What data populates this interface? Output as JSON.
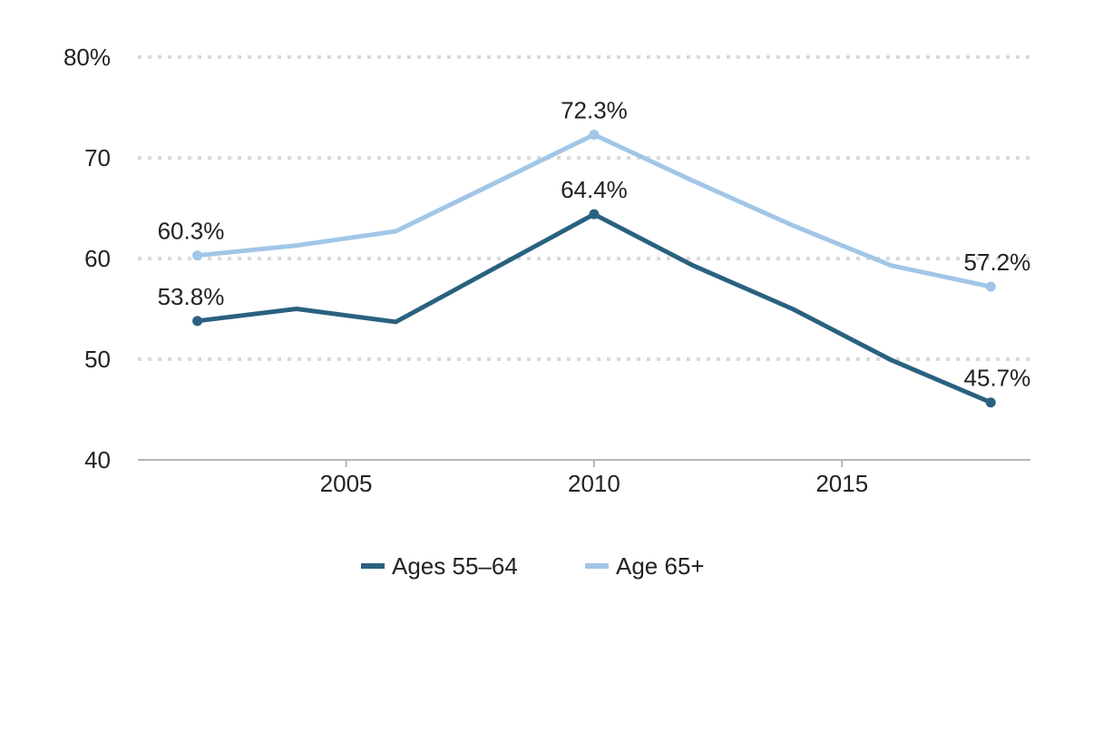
{
  "chart_data": {
    "type": "line",
    "x": [
      2002,
      2004,
      2006,
      2010,
      2012,
      2014,
      2016,
      2018
    ],
    "series": [
      {
        "name": "Ages 55–64",
        "color": "#2a6180",
        "values": [
          53.8,
          55.0,
          53.7,
          64.4,
          59.3,
          55.0,
          49.9,
          45.7
        ],
        "labels": [
          {
            "index": 0,
            "text": "53.8%"
          },
          {
            "index": 3,
            "text": "64.4%"
          },
          {
            "index": 7,
            "text": "45.7%"
          }
        ],
        "markers": [
          0,
          3,
          7
        ]
      },
      {
        "name": "Age 65+",
        "color": "#a1c6e7",
        "values": [
          60.3,
          61.3,
          62.7,
          72.3,
          67.7,
          63.3,
          59.3,
          57.2
        ],
        "labels": [
          {
            "index": 0,
            "text": "60.3%"
          },
          {
            "index": 3,
            "text": "72.3%"
          },
          {
            "index": 7,
            "text": "57.2%"
          }
        ],
        "markers": [
          0,
          3,
          7
        ]
      }
    ],
    "xlim": [
      2000.8,
      2018.8
    ],
    "ylim": [
      40,
      80
    ],
    "yticks": [
      {
        "value": 40,
        "label": "40"
      },
      {
        "value": 50,
        "label": "50"
      },
      {
        "value": 60,
        "label": "60"
      },
      {
        "value": 70,
        "label": "70"
      },
      {
        "value": 80,
        "label": "80%"
      }
    ],
    "xticks": [
      {
        "value": 2005,
        "label": "2005"
      },
      {
        "value": 2010,
        "label": "2010"
      },
      {
        "value": 2015,
        "label": "2015"
      }
    ],
    "grid": "horizontal dotted",
    "legend_position": "bottom"
  }
}
